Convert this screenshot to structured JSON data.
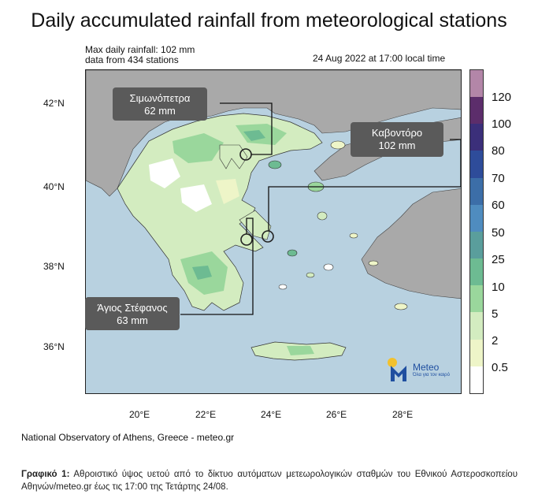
{
  "title": "Daily accumulated rainfall from meteorological stations",
  "max_rainfall": "Max daily rainfall: 102 mm",
  "stations": "data from 434 stations",
  "timestamp": "24 Aug 2022 at 17:00 local time",
  "lat_ticks": [
    "42°N",
    "40°N",
    "38°N",
    "36°N"
  ],
  "lon_ticks": [
    "20°E",
    "22°E",
    "24°E",
    "26°E",
    "28°E"
  ],
  "colorbar": {
    "labels": [
      "120",
      "100",
      "80",
      "70",
      "60",
      "50",
      "25",
      "10",
      "5",
      "2",
      "0.5"
    ],
    "colors": [
      "#b386a8",
      "#5c2d6b",
      "#3b2f7a",
      "#2e4c9a",
      "#3c6ea8",
      "#4f8cbf",
      "#5a9e9c",
      "#6dbb92",
      "#9ad79c",
      "#d3ecc0",
      "#eef5c8",
      "#ffffff"
    ]
  },
  "callouts": [
    {
      "name": "Σιμωνόπετρα",
      "value": "62 mm"
    },
    {
      "name": "Καβοντόρο",
      "value": "102 mm"
    },
    {
      "name": "Άγιος Στέφανος",
      "value": "63 mm"
    }
  ],
  "logo_text": "Meteo",
  "logo_sub": "Όλα για τον καιρό",
  "credit": "National Observatory of Athens, Greece - meteo.gr",
  "caption_label": "Γραφικό 1:",
  "caption_text": "Αθροιστικό ύψος υετού από το δίκτυο αυτόματων μετεωρολογικών σταθμών του Εθνικού Αστεροσκοπείου Αθηνών/meteo.gr έως τις 17:00 της Τετάρτης 24/08."
}
